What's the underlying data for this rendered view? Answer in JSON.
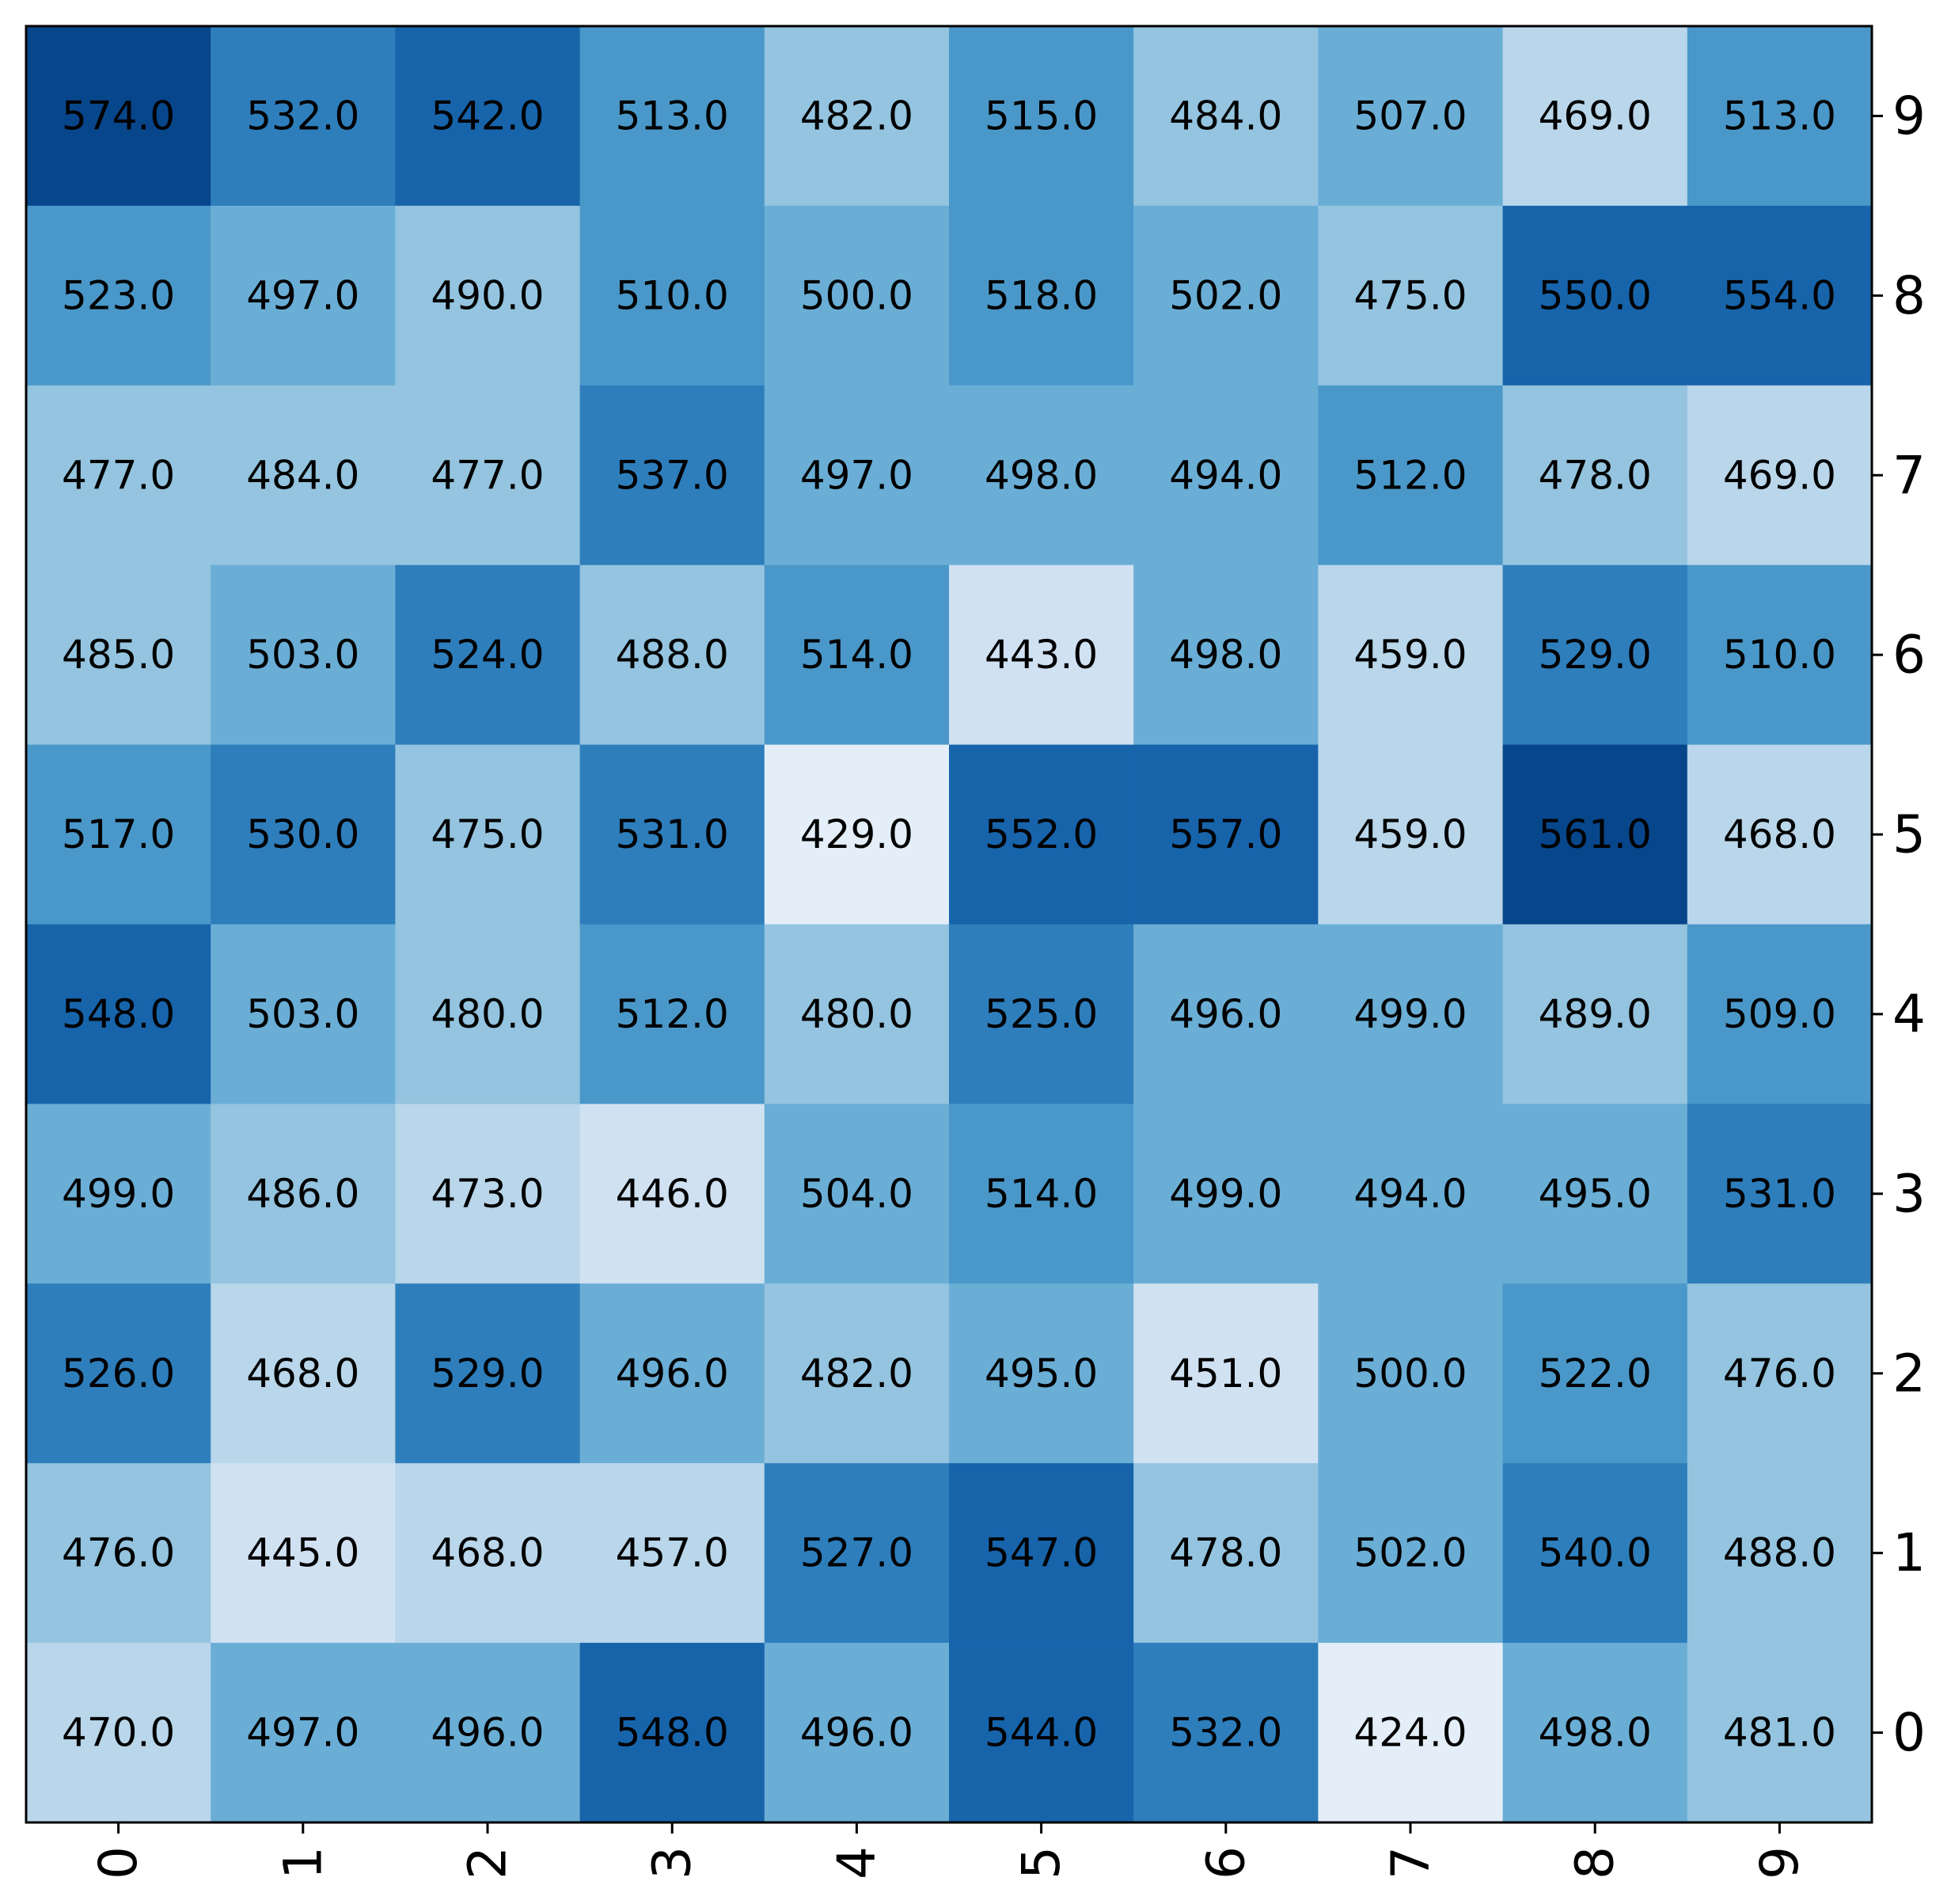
{
  "chart_data": {
    "type": "heatmap",
    "title": "",
    "xlabel": "",
    "ylabel": "",
    "x_ticks": [
      "0",
      "1",
      "2",
      "3",
      "4",
      "5",
      "6",
      "7",
      "8",
      "9"
    ],
    "y_ticks": [
      "0",
      "1",
      "2",
      "3",
      "4",
      "5",
      "6",
      "7",
      "8",
      "9"
    ],
    "y_axis_side": "right",
    "x_tick_rotation": "vertical",
    "colormap": "Blues",
    "value_format": "0.1f",
    "grid": false,
    "values_top_to_bottom": [
      [
        574.0,
        532.0,
        542.0,
        513.0,
        482.0,
        515.0,
        484.0,
        507.0,
        469.0,
        513.0
      ],
      [
        523.0,
        497.0,
        490.0,
        510.0,
        500.0,
        518.0,
        502.0,
        475.0,
        550.0,
        554.0
      ],
      [
        477.0,
        484.0,
        477.0,
        537.0,
        497.0,
        498.0,
        494.0,
        512.0,
        478.0,
        469.0
      ],
      [
        485.0,
        503.0,
        524.0,
        488.0,
        514.0,
        443.0,
        498.0,
        459.0,
        529.0,
        510.0
      ],
      [
        517.0,
        530.0,
        475.0,
        531.0,
        429.0,
        552.0,
        557.0,
        459.0,
        561.0,
        468.0
      ],
      [
        548.0,
        503.0,
        480.0,
        512.0,
        480.0,
        525.0,
        496.0,
        499.0,
        489.0,
        509.0
      ],
      [
        499.0,
        486.0,
        473.0,
        446.0,
        504.0,
        514.0,
        499.0,
        494.0,
        495.0,
        531.0
      ],
      [
        526.0,
        468.0,
        529.0,
        496.0,
        482.0,
        495.0,
        451.0,
        500.0,
        522.0,
        476.0
      ],
      [
        476.0,
        445.0,
        468.0,
        457.0,
        527.0,
        547.0,
        478.0,
        502.0,
        540.0,
        488.0
      ],
      [
        470.0,
        497.0,
        496.0,
        548.0,
        496.0,
        544.0,
        532.0,
        424.0,
        498.0,
        481.0
      ]
    ],
    "color_levels": [
      {
        "min": 424,
        "max": 438,
        "color": "#e3eef8"
      },
      {
        "min": 438,
        "max": 452,
        "color": "#d0e1f2"
      },
      {
        "min": 452,
        "max": 474,
        "color": "#b9d6ea"
      },
      {
        "min": 474,
        "max": 492,
        "color": "#94c4df"
      },
      {
        "min": 492,
        "max": 508,
        "color": "#6aaed6"
      },
      {
        "min": 508,
        "max": 524,
        "color": "#4a98c9"
      },
      {
        "min": 524,
        "max": 542,
        "color": "#2e7ebc"
      },
      {
        "min": 542,
        "max": 560,
        "color": "#1764ab"
      },
      {
        "min": 560,
        "max": 999,
        "color": "#08468b"
      }
    ],
    "text_color": "#000000",
    "frame_color": "#000000"
  }
}
